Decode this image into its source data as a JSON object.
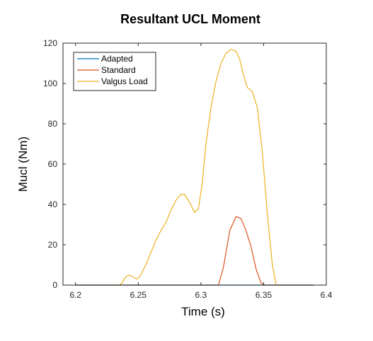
{
  "chart_data": {
    "type": "line",
    "title": "Resultant UCL Moment",
    "xlabel": "Time (s)",
    "ylabel": "Mucl (Nm)",
    "xlim": [
      6.19,
      6.4
    ],
    "ylim": [
      0,
      120
    ],
    "xticks": [
      "6.2",
      "6.25",
      "6.3",
      "6.35",
      "6.4"
    ],
    "xtick_values": [
      6.2,
      6.25,
      6.3,
      6.35,
      6.4
    ],
    "yticks": [
      "0",
      "20",
      "40",
      "60",
      "80",
      "100",
      "120"
    ],
    "ytick_values": [
      0,
      20,
      40,
      60,
      80,
      100,
      120
    ],
    "grid": false,
    "legend_position": "top-left",
    "series": [
      {
        "name": "Adapted",
        "color": "#0072BD",
        "x": [
          6.2,
          6.39
        ],
        "y": [
          0,
          0
        ]
      },
      {
        "name": "Standard",
        "color": "#D95319",
        "x": [
          6.2,
          6.314,
          6.318,
          6.323,
          6.328,
          6.332,
          6.336,
          6.34,
          6.344,
          6.348,
          6.351,
          6.39
        ],
        "y": [
          0,
          0,
          9,
          27,
          34,
          33,
          27,
          19,
          8,
          1,
          0,
          0
        ]
      },
      {
        "name": "Valgus Load",
        "color": "#EDB120",
        "x": [
          6.2,
          6.235,
          6.237,
          6.24,
          6.243,
          6.246,
          6.249,
          6.252,
          6.256,
          6.26,
          6.264,
          6.268,
          6.272,
          6.276,
          6.28,
          6.284,
          6.287,
          6.291,
          6.295,
          6.298,
          6.301,
          6.304,
          6.308,
          6.312,
          6.316,
          6.32,
          6.324,
          6.328,
          6.331,
          6.334,
          6.337,
          6.341,
          6.345,
          6.349,
          6.353,
          6.357,
          6.36,
          6.364,
          6.368,
          6.372,
          6.39
        ],
        "y": [
          0,
          0,
          1,
          4,
          5,
          4,
          3,
          5,
          10,
          16,
          22,
          27,
          31,
          37,
          42,
          45,
          45,
          41,
          36,
          38,
          50,
          70,
          88,
          101,
          110,
          115,
          117,
          116,
          112,
          104,
          98,
          96,
          88,
          66,
          35,
          10,
          0,
          0,
          0,
          0,
          0
        ]
      }
    ]
  }
}
